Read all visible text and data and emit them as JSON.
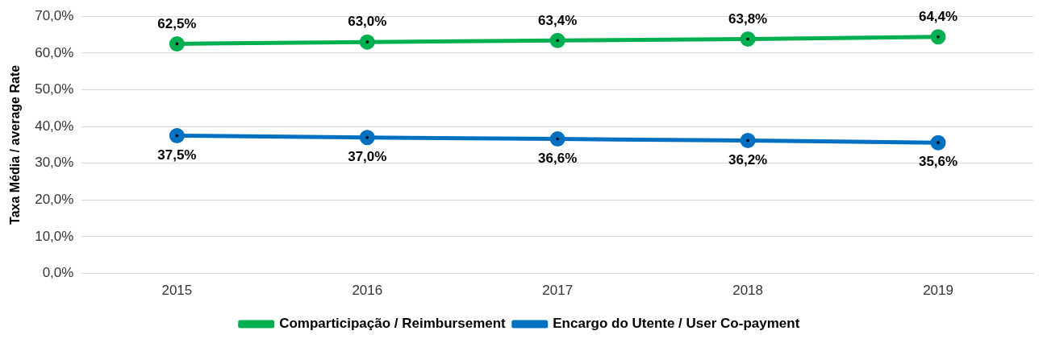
{
  "chart_data": {
    "type": "line",
    "ylabel": "Taxa Média / average Rate",
    "categories": [
      "2015",
      "2016",
      "2017",
      "2018",
      "2019"
    ],
    "series": [
      {
        "name": "Comparticipação / Reimbursement",
        "color": "#00b050",
        "values": [
          62.5,
          63.0,
          63.4,
          63.8,
          64.4
        ],
        "value_labels": [
          "62,5%",
          "63,0%",
          "63,4%",
          "63,8%",
          "64,4%"
        ]
      },
      {
        "name": "Encargo do Utente / User Co-payment",
        "color": "#0070c0",
        "values": [
          37.5,
          37.0,
          36.6,
          36.2,
          35.6
        ],
        "value_labels": [
          "37,5%",
          "37,0%",
          "36,6%",
          "36,2%",
          "35,6%"
        ]
      }
    ],
    "ylim": [
      0,
      70
    ],
    "yticks": [
      {
        "value": 0,
        "label": "0,0%"
      },
      {
        "value": 10,
        "label": "10,0%"
      },
      {
        "value": 20,
        "label": "20,0%"
      },
      {
        "value": 30,
        "label": "30,0%"
      },
      {
        "value": 40,
        "label": "40,0%"
      },
      {
        "value": 50,
        "label": "50,0%"
      },
      {
        "value": 60,
        "label": "60,0%"
      },
      {
        "value": 70,
        "label": "70,0%"
      }
    ],
    "grid": "y",
    "legend": "bottom",
    "marker": "circle",
    "line_style": "solid"
  }
}
